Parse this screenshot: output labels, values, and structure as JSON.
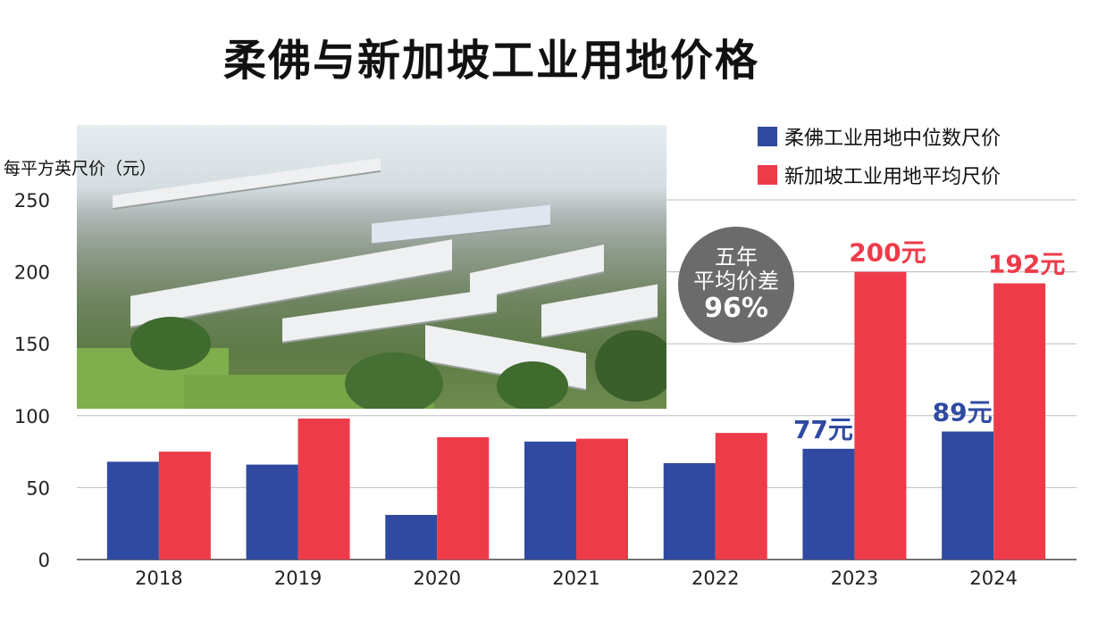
{
  "chart_data": {
    "type": "bar",
    "title": "柔佛与新加坡工业用地价格",
    "ylabel": "每平方英尺价（元）",
    "ylim": [
      0,
      250
    ],
    "yticks": [
      0,
      50,
      100,
      150,
      200,
      250
    ],
    "grid": true,
    "legend_position": "top-right",
    "categories": [
      "2018",
      "2019",
      "2020",
      "2021",
      "2022",
      "2023",
      "2024"
    ],
    "series": [
      {
        "name": "柔佛工业用地中位数尺价",
        "color": "#2f4aa0",
        "values": [
          68,
          66,
          31,
          82,
          67,
          77,
          89
        ],
        "labels": [
          "",
          "",
          "",
          "",
          "",
          "77元",
          "89元"
        ]
      },
      {
        "name": "新加坡工业用地平均尺价",
        "color": "#ee3b4a",
        "values": [
          75,
          98,
          85,
          84,
          88,
          200,
          192
        ],
        "labels": [
          "",
          "",
          "",
          "",
          "",
          "200元",
          "192元"
        ]
      }
    ],
    "annotation": {
      "lines": [
        "五年",
        "平均价差"
      ],
      "value": "96%"
    }
  }
}
